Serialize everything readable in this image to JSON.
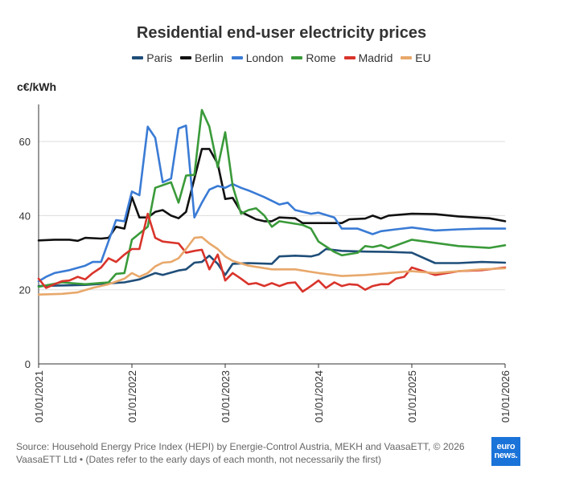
{
  "chart_data": {
    "type": "line",
    "title": "Residential end-user electricity prices",
    "ylabel": "c€/kWh",
    "xlabel": "",
    "ylim": [
      0,
      70
    ],
    "yticks": [
      0,
      20,
      40,
      60
    ],
    "xlim": [
      2021.0,
      2026.0
    ],
    "xticks": [
      {
        "value": 2021.0,
        "label": "01/01/2021"
      },
      {
        "value": 2022.0,
        "label": "01/01/2022"
      },
      {
        "value": 2023.0,
        "label": "01/01/2023"
      },
      {
        "value": 2024.0,
        "label": "01/01/2024"
      },
      {
        "value": 2025.0,
        "label": "01/01/2025"
      },
      {
        "value": 2026.0,
        "label": "01/01/2026"
      }
    ],
    "series": [
      {
        "name": "Paris",
        "color": "#1f4e79",
        "points": [
          [
            2021.0,
            21.0
          ],
          [
            2021.5,
            21.3
          ],
          [
            2021.92,
            22.0
          ],
          [
            2022.08,
            22.8
          ],
          [
            2022.25,
            24.5
          ],
          [
            2022.33,
            24.0
          ],
          [
            2022.5,
            25.2
          ],
          [
            2022.58,
            25.5
          ],
          [
            2022.67,
            27.3
          ],
          [
            2022.75,
            27.5
          ],
          [
            2022.83,
            29.2
          ],
          [
            2022.92,
            27.0
          ],
          [
            2023.0,
            24.0
          ],
          [
            2023.08,
            27.0
          ],
          [
            2023.25,
            27.2
          ],
          [
            2023.5,
            27.0
          ],
          [
            2023.58,
            29.0
          ],
          [
            2023.75,
            29.2
          ],
          [
            2023.92,
            29.0
          ],
          [
            2024.0,
            29.5
          ],
          [
            2024.08,
            31.0
          ],
          [
            2024.25,
            30.5
          ],
          [
            2024.5,
            30.3
          ],
          [
            2024.75,
            30.2
          ],
          [
            2025.0,
            30.0
          ],
          [
            2025.25,
            27.2
          ],
          [
            2025.5,
            27.2
          ],
          [
            2025.75,
            27.5
          ],
          [
            2026.0,
            27.3
          ]
        ]
      },
      {
        "name": "Berlin",
        "color": "#111111",
        "points": [
          [
            2021.0,
            33.3
          ],
          [
            2021.17,
            33.5
          ],
          [
            2021.33,
            33.5
          ],
          [
            2021.42,
            33.2
          ],
          [
            2021.5,
            34.0
          ],
          [
            2021.67,
            33.8
          ],
          [
            2021.75,
            34.0
          ],
          [
            2021.83,
            37.0
          ],
          [
            2021.92,
            36.5
          ],
          [
            2022.0,
            45.0
          ],
          [
            2022.08,
            39.5
          ],
          [
            2022.17,
            39.5
          ],
          [
            2022.25,
            41.0
          ],
          [
            2022.33,
            41.5
          ],
          [
            2022.42,
            40.0
          ],
          [
            2022.5,
            39.3
          ],
          [
            2022.58,
            41.0
          ],
          [
            2022.67,
            50.0
          ],
          [
            2022.75,
            58.0
          ],
          [
            2022.83,
            58.0
          ],
          [
            2022.92,
            54.0
          ],
          [
            2023.0,
            44.5
          ],
          [
            2023.08,
            44.8
          ],
          [
            2023.17,
            41.0
          ],
          [
            2023.25,
            40.0
          ],
          [
            2023.33,
            39.0
          ],
          [
            2023.42,
            38.5
          ],
          [
            2023.5,
            38.5
          ],
          [
            2023.58,
            39.5
          ],
          [
            2023.75,
            39.3
          ],
          [
            2023.83,
            38.0
          ],
          [
            2024.0,
            38.0
          ],
          [
            2024.25,
            38.0
          ],
          [
            2024.33,
            39.0
          ],
          [
            2024.5,
            39.2
          ],
          [
            2024.58,
            40.0
          ],
          [
            2024.67,
            39.2
          ],
          [
            2024.75,
            40.0
          ],
          [
            2025.0,
            40.5
          ],
          [
            2025.25,
            40.4
          ],
          [
            2025.5,
            39.8
          ],
          [
            2025.83,
            39.3
          ],
          [
            2026.0,
            38.5
          ]
        ]
      },
      {
        "name": "London",
        "color": "#3a7bd5",
        "points": [
          [
            2021.0,
            22.3
          ],
          [
            2021.08,
            23.5
          ],
          [
            2021.17,
            24.5
          ],
          [
            2021.33,
            25.3
          ],
          [
            2021.5,
            26.5
          ],
          [
            2021.58,
            27.5
          ],
          [
            2021.67,
            27.5
          ],
          [
            2021.83,
            38.8
          ],
          [
            2021.92,
            38.5
          ],
          [
            2022.0,
            46.5
          ],
          [
            2022.08,
            45.5
          ],
          [
            2022.17,
            64.0
          ],
          [
            2022.25,
            61.0
          ],
          [
            2022.33,
            49.0
          ],
          [
            2022.42,
            50.0
          ],
          [
            2022.5,
            63.5
          ],
          [
            2022.58,
            64.3
          ],
          [
            2022.67,
            39.5
          ],
          [
            2022.75,
            43.5
          ],
          [
            2022.83,
            47.0
          ],
          [
            2022.92,
            48.0
          ],
          [
            2023.0,
            47.5
          ],
          [
            2023.08,
            48.5
          ],
          [
            2023.17,
            47.5
          ],
          [
            2023.25,
            46.8
          ],
          [
            2023.42,
            45.0
          ],
          [
            2023.58,
            43.0
          ],
          [
            2023.67,
            43.5
          ],
          [
            2023.75,
            41.5
          ],
          [
            2023.92,
            40.5
          ],
          [
            2024.0,
            40.8
          ],
          [
            2024.17,
            39.5
          ],
          [
            2024.25,
            36.5
          ],
          [
            2024.42,
            36.5
          ],
          [
            2024.58,
            35.0
          ],
          [
            2024.67,
            35.8
          ],
          [
            2024.83,
            36.3
          ],
          [
            2025.0,
            36.8
          ],
          [
            2025.25,
            36.0
          ],
          [
            2025.5,
            36.3
          ],
          [
            2025.75,
            36.5
          ],
          [
            2026.0,
            36.5
          ]
        ]
      },
      {
        "name": "Rome",
        "color": "#3a9a3a",
        "points": [
          [
            2021.0,
            20.8
          ],
          [
            2021.25,
            22.0
          ],
          [
            2021.5,
            21.5
          ],
          [
            2021.75,
            22.0
          ],
          [
            2021.83,
            24.3
          ],
          [
            2021.92,
            24.5
          ],
          [
            2022.0,
            33.5
          ],
          [
            2022.17,
            37.0
          ],
          [
            2022.25,
            47.5
          ],
          [
            2022.42,
            49.0
          ],
          [
            2022.5,
            43.5
          ],
          [
            2022.58,
            50.8
          ],
          [
            2022.67,
            51.0
          ],
          [
            2022.75,
            68.5
          ],
          [
            2022.83,
            64.0
          ],
          [
            2022.92,
            53.0
          ],
          [
            2023.0,
            62.5
          ],
          [
            2023.08,
            48.0
          ],
          [
            2023.17,
            40.5
          ],
          [
            2023.25,
            41.5
          ],
          [
            2023.33,
            42.0
          ],
          [
            2023.42,
            40.0
          ],
          [
            2023.5,
            37.0
          ],
          [
            2023.58,
            38.5
          ],
          [
            2023.83,
            37.5
          ],
          [
            2023.92,
            36.5
          ],
          [
            2024.0,
            33.0
          ],
          [
            2024.17,
            30.2
          ],
          [
            2024.25,
            29.3
          ],
          [
            2024.42,
            30.0
          ],
          [
            2024.5,
            31.8
          ],
          [
            2024.58,
            31.5
          ],
          [
            2024.67,
            32.0
          ],
          [
            2024.75,
            31.2
          ],
          [
            2025.0,
            33.5
          ],
          [
            2025.5,
            31.8
          ],
          [
            2025.83,
            31.3
          ],
          [
            2026.0,
            32.0
          ]
        ]
      },
      {
        "name": "Madrid",
        "color": "#d9342b",
        "points": [
          [
            2021.0,
            23.0
          ],
          [
            2021.08,
            20.5
          ],
          [
            2021.17,
            21.5
          ],
          [
            2021.25,
            22.3
          ],
          [
            2021.33,
            22.5
          ],
          [
            2021.42,
            23.5
          ],
          [
            2021.5,
            22.8
          ],
          [
            2021.58,
            24.5
          ],
          [
            2021.67,
            26.0
          ],
          [
            2021.75,
            28.5
          ],
          [
            2021.83,
            27.5
          ],
          [
            2021.92,
            29.5
          ],
          [
            2022.0,
            31.0
          ],
          [
            2022.08,
            31.0
          ],
          [
            2022.17,
            40.5
          ],
          [
            2022.25,
            34.0
          ],
          [
            2022.33,
            33.0
          ],
          [
            2022.5,
            32.5
          ],
          [
            2022.58,
            30.0
          ],
          [
            2022.67,
            30.5
          ],
          [
            2022.75,
            30.8
          ],
          [
            2022.83,
            25.5
          ],
          [
            2022.92,
            29.5
          ],
          [
            2023.0,
            22.5
          ],
          [
            2023.08,
            24.5
          ],
          [
            2023.17,
            23.0
          ],
          [
            2023.25,
            21.5
          ],
          [
            2023.33,
            21.8
          ],
          [
            2023.42,
            21.0
          ],
          [
            2023.5,
            21.8
          ],
          [
            2023.58,
            21.0
          ],
          [
            2023.67,
            21.8
          ],
          [
            2023.75,
            22.0
          ],
          [
            2023.83,
            19.5
          ],
          [
            2023.92,
            21.0
          ],
          [
            2024.0,
            22.5
          ],
          [
            2024.08,
            20.5
          ],
          [
            2024.17,
            22.0
          ],
          [
            2024.25,
            21.0
          ],
          [
            2024.33,
            21.5
          ],
          [
            2024.42,
            21.3
          ],
          [
            2024.5,
            20.0
          ],
          [
            2024.58,
            21.0
          ],
          [
            2024.67,
            21.5
          ],
          [
            2024.75,
            21.5
          ],
          [
            2024.83,
            23.0
          ],
          [
            2024.92,
            23.5
          ],
          [
            2025.0,
            26.0
          ],
          [
            2025.25,
            24.0
          ],
          [
            2025.5,
            25.0
          ],
          [
            2025.75,
            25.3
          ],
          [
            2026.0,
            26.0
          ]
        ]
      },
      {
        "name": "EU",
        "color": "#e8a86b",
        "points": [
          [
            2021.0,
            18.7
          ],
          [
            2021.25,
            18.9
          ],
          [
            2021.42,
            19.3
          ],
          [
            2021.58,
            20.5
          ],
          [
            2021.75,
            21.5
          ],
          [
            2021.92,
            23.0
          ],
          [
            2022.0,
            24.5
          ],
          [
            2022.08,
            23.5
          ],
          [
            2022.17,
            24.5
          ],
          [
            2022.25,
            26.3
          ],
          [
            2022.33,
            27.3
          ],
          [
            2022.42,
            27.5
          ],
          [
            2022.5,
            28.5
          ],
          [
            2022.58,
            31.0
          ],
          [
            2022.67,
            34.0
          ],
          [
            2022.75,
            34.2
          ],
          [
            2022.83,
            32.5
          ],
          [
            2022.92,
            31.0
          ],
          [
            2023.0,
            29.0
          ],
          [
            2023.08,
            27.8
          ],
          [
            2023.25,
            26.5
          ],
          [
            2023.5,
            25.5
          ],
          [
            2023.75,
            25.5
          ],
          [
            2024.0,
            24.5
          ],
          [
            2024.25,
            23.7
          ],
          [
            2024.5,
            24.0
          ],
          [
            2024.75,
            24.5
          ],
          [
            2025.0,
            25.0
          ],
          [
            2025.25,
            24.5
          ],
          [
            2025.5,
            25.0
          ],
          [
            2025.75,
            25.5
          ],
          [
            2026.0,
            25.8
          ]
        ]
      }
    ]
  },
  "unit_label": "c€/kWh",
  "source": "Source: Household Energy Price Index (HEPI) by Energie-Control Austria, MEKH and VaasaETT, © 2026 VaasaETT Ltd • (Dates refer to the early days of each month, not necessarily the first)",
  "logo": {
    "line1": "euro",
    "line2": "news."
  }
}
